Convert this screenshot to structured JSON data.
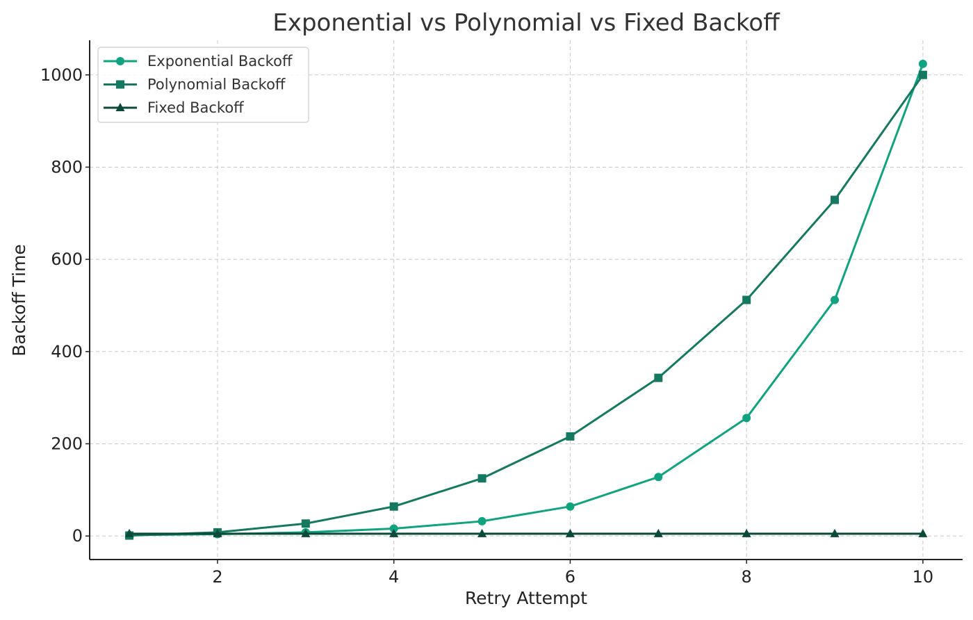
{
  "chart_data": {
    "type": "line",
    "title": "Exponential vs Polynomial vs Fixed Backoff",
    "xlabel": "Retry Attempt",
    "ylabel": "Backoff Time",
    "x": [
      1,
      2,
      3,
      4,
      5,
      6,
      7,
      8,
      9,
      10
    ],
    "xlim": [
      0.55,
      10.45
    ],
    "ylim": [
      -51,
      1075
    ],
    "xticks": [
      2,
      4,
      6,
      8,
      10
    ],
    "yticks": [
      0,
      200,
      400,
      600,
      800,
      1000
    ],
    "xtick_labels": [
      "2",
      "4",
      "6",
      "8",
      "10"
    ],
    "ytick_labels": [
      "0",
      "200",
      "400",
      "600",
      "800",
      "1000"
    ],
    "grid": true,
    "legend_position": "top-left",
    "series": [
      {
        "name": "Exponential Backoff",
        "marker": "circle",
        "color": "#10a37f",
        "values": [
          2,
          4,
          8,
          16,
          32,
          64,
          128,
          256,
          512,
          1024
        ]
      },
      {
        "name": "Polynomial Backoff",
        "marker": "square",
        "color": "#147960",
        "values": [
          1,
          8,
          27,
          64,
          125,
          216,
          343,
          512,
          729,
          1000
        ]
      },
      {
        "name": "Fixed Backoff",
        "marker": "triangle",
        "color": "#0b4a3a",
        "values": [
          5,
          5,
          5,
          5,
          5,
          5,
          5,
          5,
          5,
          5
        ]
      }
    ]
  }
}
